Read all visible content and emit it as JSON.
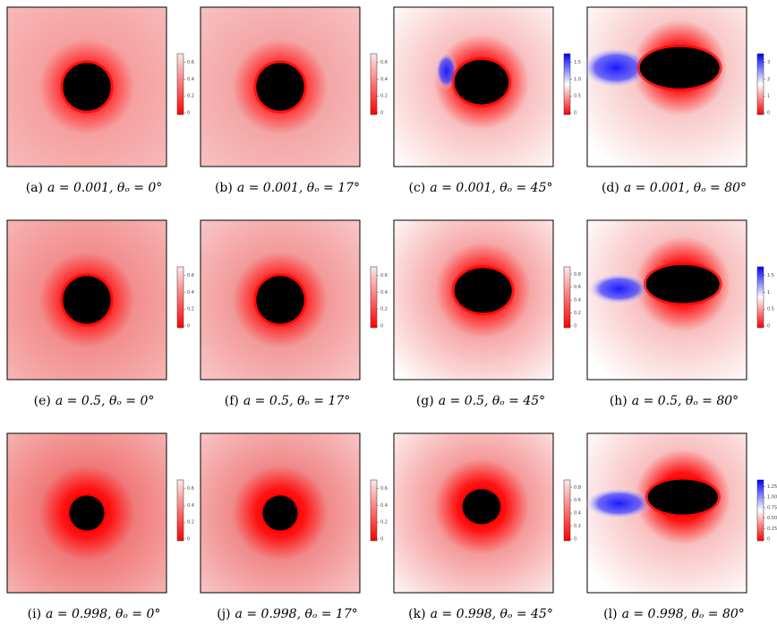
{
  "panels": [
    {
      "label": "(a)",
      "caption": "a = 0.001, θₒ = 0°",
      "colorbar_ticks": [
        "0",
        "0.2",
        "0.4",
        "0.6"
      ]
    },
    {
      "label": "(b)",
      "caption": "a = 0.001, θₒ = 17°",
      "colorbar_ticks": [
        "0",
        "0.2",
        "0.4",
        "0.6"
      ]
    },
    {
      "label": "(c)",
      "caption": "a = 0.001, θₒ = 45°",
      "colorbar_ticks": [
        "0",
        "0.5",
        "1.0",
        "1.5"
      ]
    },
    {
      "label": "(d)",
      "caption": "a = 0.001, θₒ = 80°",
      "colorbar_ticks": [
        "0",
        "1",
        "2",
        "3"
      ]
    },
    {
      "label": "(e)",
      "caption": "a = 0.5, θₒ = 0°",
      "colorbar_ticks": [
        "0",
        "0.2",
        "0.4",
        "0.6"
      ]
    },
    {
      "label": "(f)",
      "caption": "a = 0.5, θₒ = 17°",
      "colorbar_ticks": [
        "0",
        "0.2",
        "0.4",
        "0.6"
      ]
    },
    {
      "label": "(g)",
      "caption": "a = 0.5, θₒ = 45°",
      "colorbar_ticks": [
        "0",
        "0.2",
        "0.4",
        "0.6",
        "0.8"
      ]
    },
    {
      "label": "(h)",
      "caption": "a = 0.5, θₒ = 80°",
      "colorbar_ticks": [
        "0",
        "0.5",
        "1",
        "1.5"
      ]
    },
    {
      "label": "(i)",
      "caption": "a = 0.998, θₒ = 0°",
      "colorbar_ticks": [
        "0",
        "0.2",
        "0.4",
        "0.6"
      ]
    },
    {
      "label": "(j)",
      "caption": "a = 0.998, θₒ = 17°",
      "colorbar_ticks": [
        "0",
        "0.2",
        "0.4",
        "0.6"
      ]
    },
    {
      "label": "(k)",
      "caption": "a = 0.998, θₒ = 45°",
      "colorbar_ticks": [
        "0",
        "0.2",
        "0.4",
        "0.6",
        "0.8"
      ]
    },
    {
      "label": "(l)",
      "caption": "a = 0.998, θₒ = 80°",
      "colorbar_ticks": [
        "0",
        "0.25",
        "0.50",
        "0.75",
        "1.00",
        "1.25"
      ]
    }
  ]
}
